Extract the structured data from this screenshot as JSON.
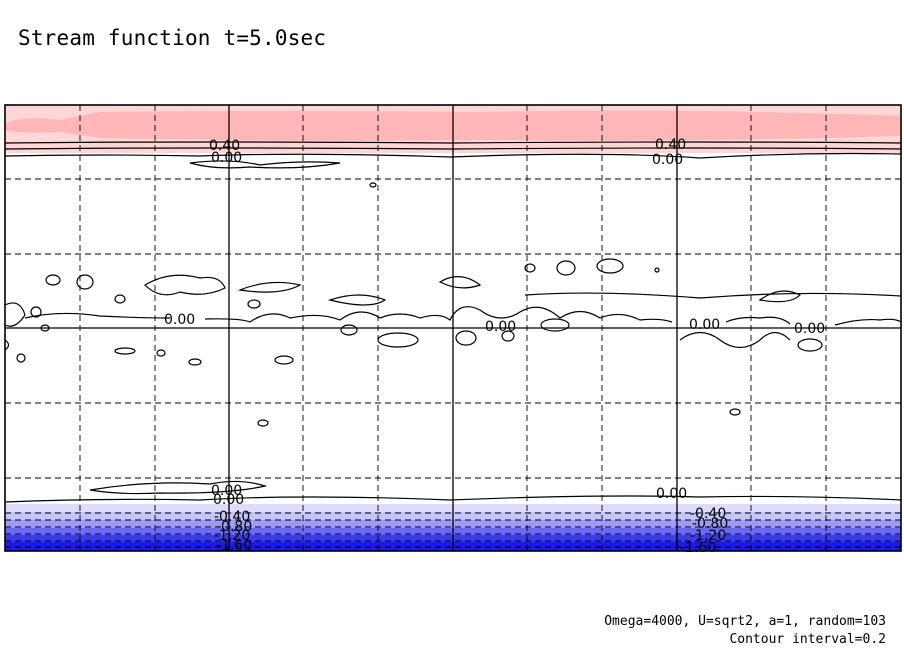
{
  "title": "Stream function t=5.0sec",
  "annotation": {
    "params": "Omega=4000, U=sqrt2, a=1, random=103",
    "contour": "Contour interval=0.2"
  },
  "chart_data": {
    "type": "heatmap",
    "subtype": "filled-contour map with contour lines",
    "title": "Stream function t=5.0sec",
    "xlabel": "",
    "ylabel": "",
    "x_major_gridlines": 3,
    "x_minor_gridlines": 8,
    "y_minor_gridlines": 5,
    "grid": true,
    "contour_interval": 0.2,
    "colors": {
      "positive_light": "#ffd6d6",
      "positive_mid": "#ffb6b6",
      "negative_light": "#dcdcff",
      "negative_mid": "#9a9aff",
      "negative_dark": "#3333f0",
      "negative_deep": "#1a1aee"
    },
    "contour_labels_top": [
      "0.40",
      "0.00"
    ],
    "contour_labels_middle": [
      "0.00",
      "0.00",
      "0.00",
      "0.00"
    ],
    "contour_labels_bottom": [
      "0.00",
      "-0.40",
      "-0.80",
      "-1.20",
      "-1.60"
    ],
    "positive_band_levels": [
      0.2,
      0.4,
      0.6
    ],
    "negative_band_levels": [
      -0.2,
      -0.4,
      -0.6,
      -0.8,
      -1.0,
      -1.2,
      -1.4,
      -1.6,
      -1.8
    ]
  }
}
